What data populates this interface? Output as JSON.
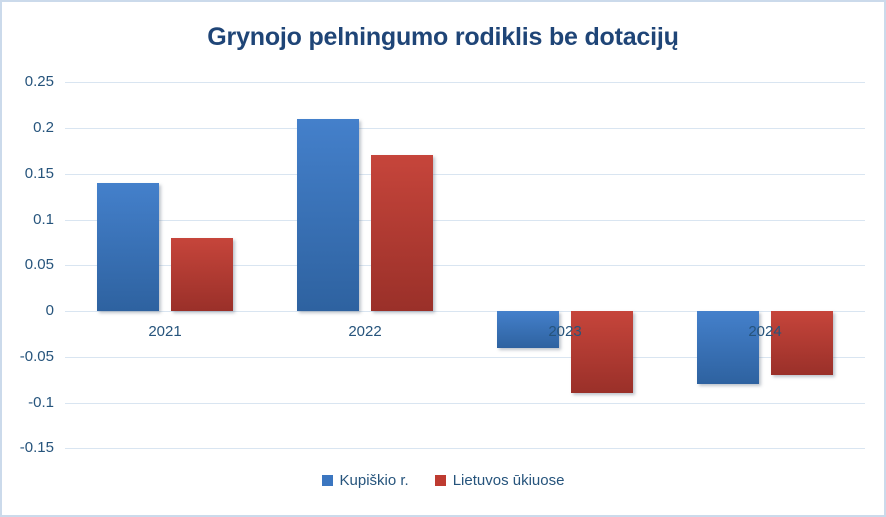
{
  "chart_data": {
    "type": "bar",
    "title": "Grynojo pelningumo rodiklis be dotacijų",
    "categories": [
      "2021",
      "2022",
      "2023",
      "2024"
    ],
    "series": [
      {
        "name": "Kupiškio r.",
        "color": "#3B76C0",
        "color_top": "#4480CB",
        "color_bottom": "#2E62A0",
        "values": [
          0.14,
          0.21,
          -0.04,
          -0.08
        ]
      },
      {
        "name": "Lietuvos ūkiuose",
        "color": "#BE3B31",
        "color_top": "#C6453B",
        "color_bottom": "#9A3029",
        "values": [
          0.08,
          0.17,
          -0.09,
          -0.07
        ]
      }
    ],
    "yticks": [
      0.25,
      0.2,
      0.15,
      0.1,
      0.05,
      0,
      -0.05,
      -0.1,
      -0.15
    ],
    "ytick_labels": [
      "0.25",
      "0.2",
      "0.15",
      "0.1",
      "0.05",
      "0",
      "-0.05",
      "-0.1",
      "-0.15"
    ],
    "ylim": [
      -0.15,
      0.25
    ],
    "xlabel": "",
    "ylabel": "",
    "grid": true,
    "legend_position": "bottom",
    "colors": {
      "title_text": "#1F4577",
      "axis_text": "#26547C",
      "gridline": "#D9E5F1",
      "border": "#CBDAEB",
      "background": "#FFFFFF"
    }
  }
}
